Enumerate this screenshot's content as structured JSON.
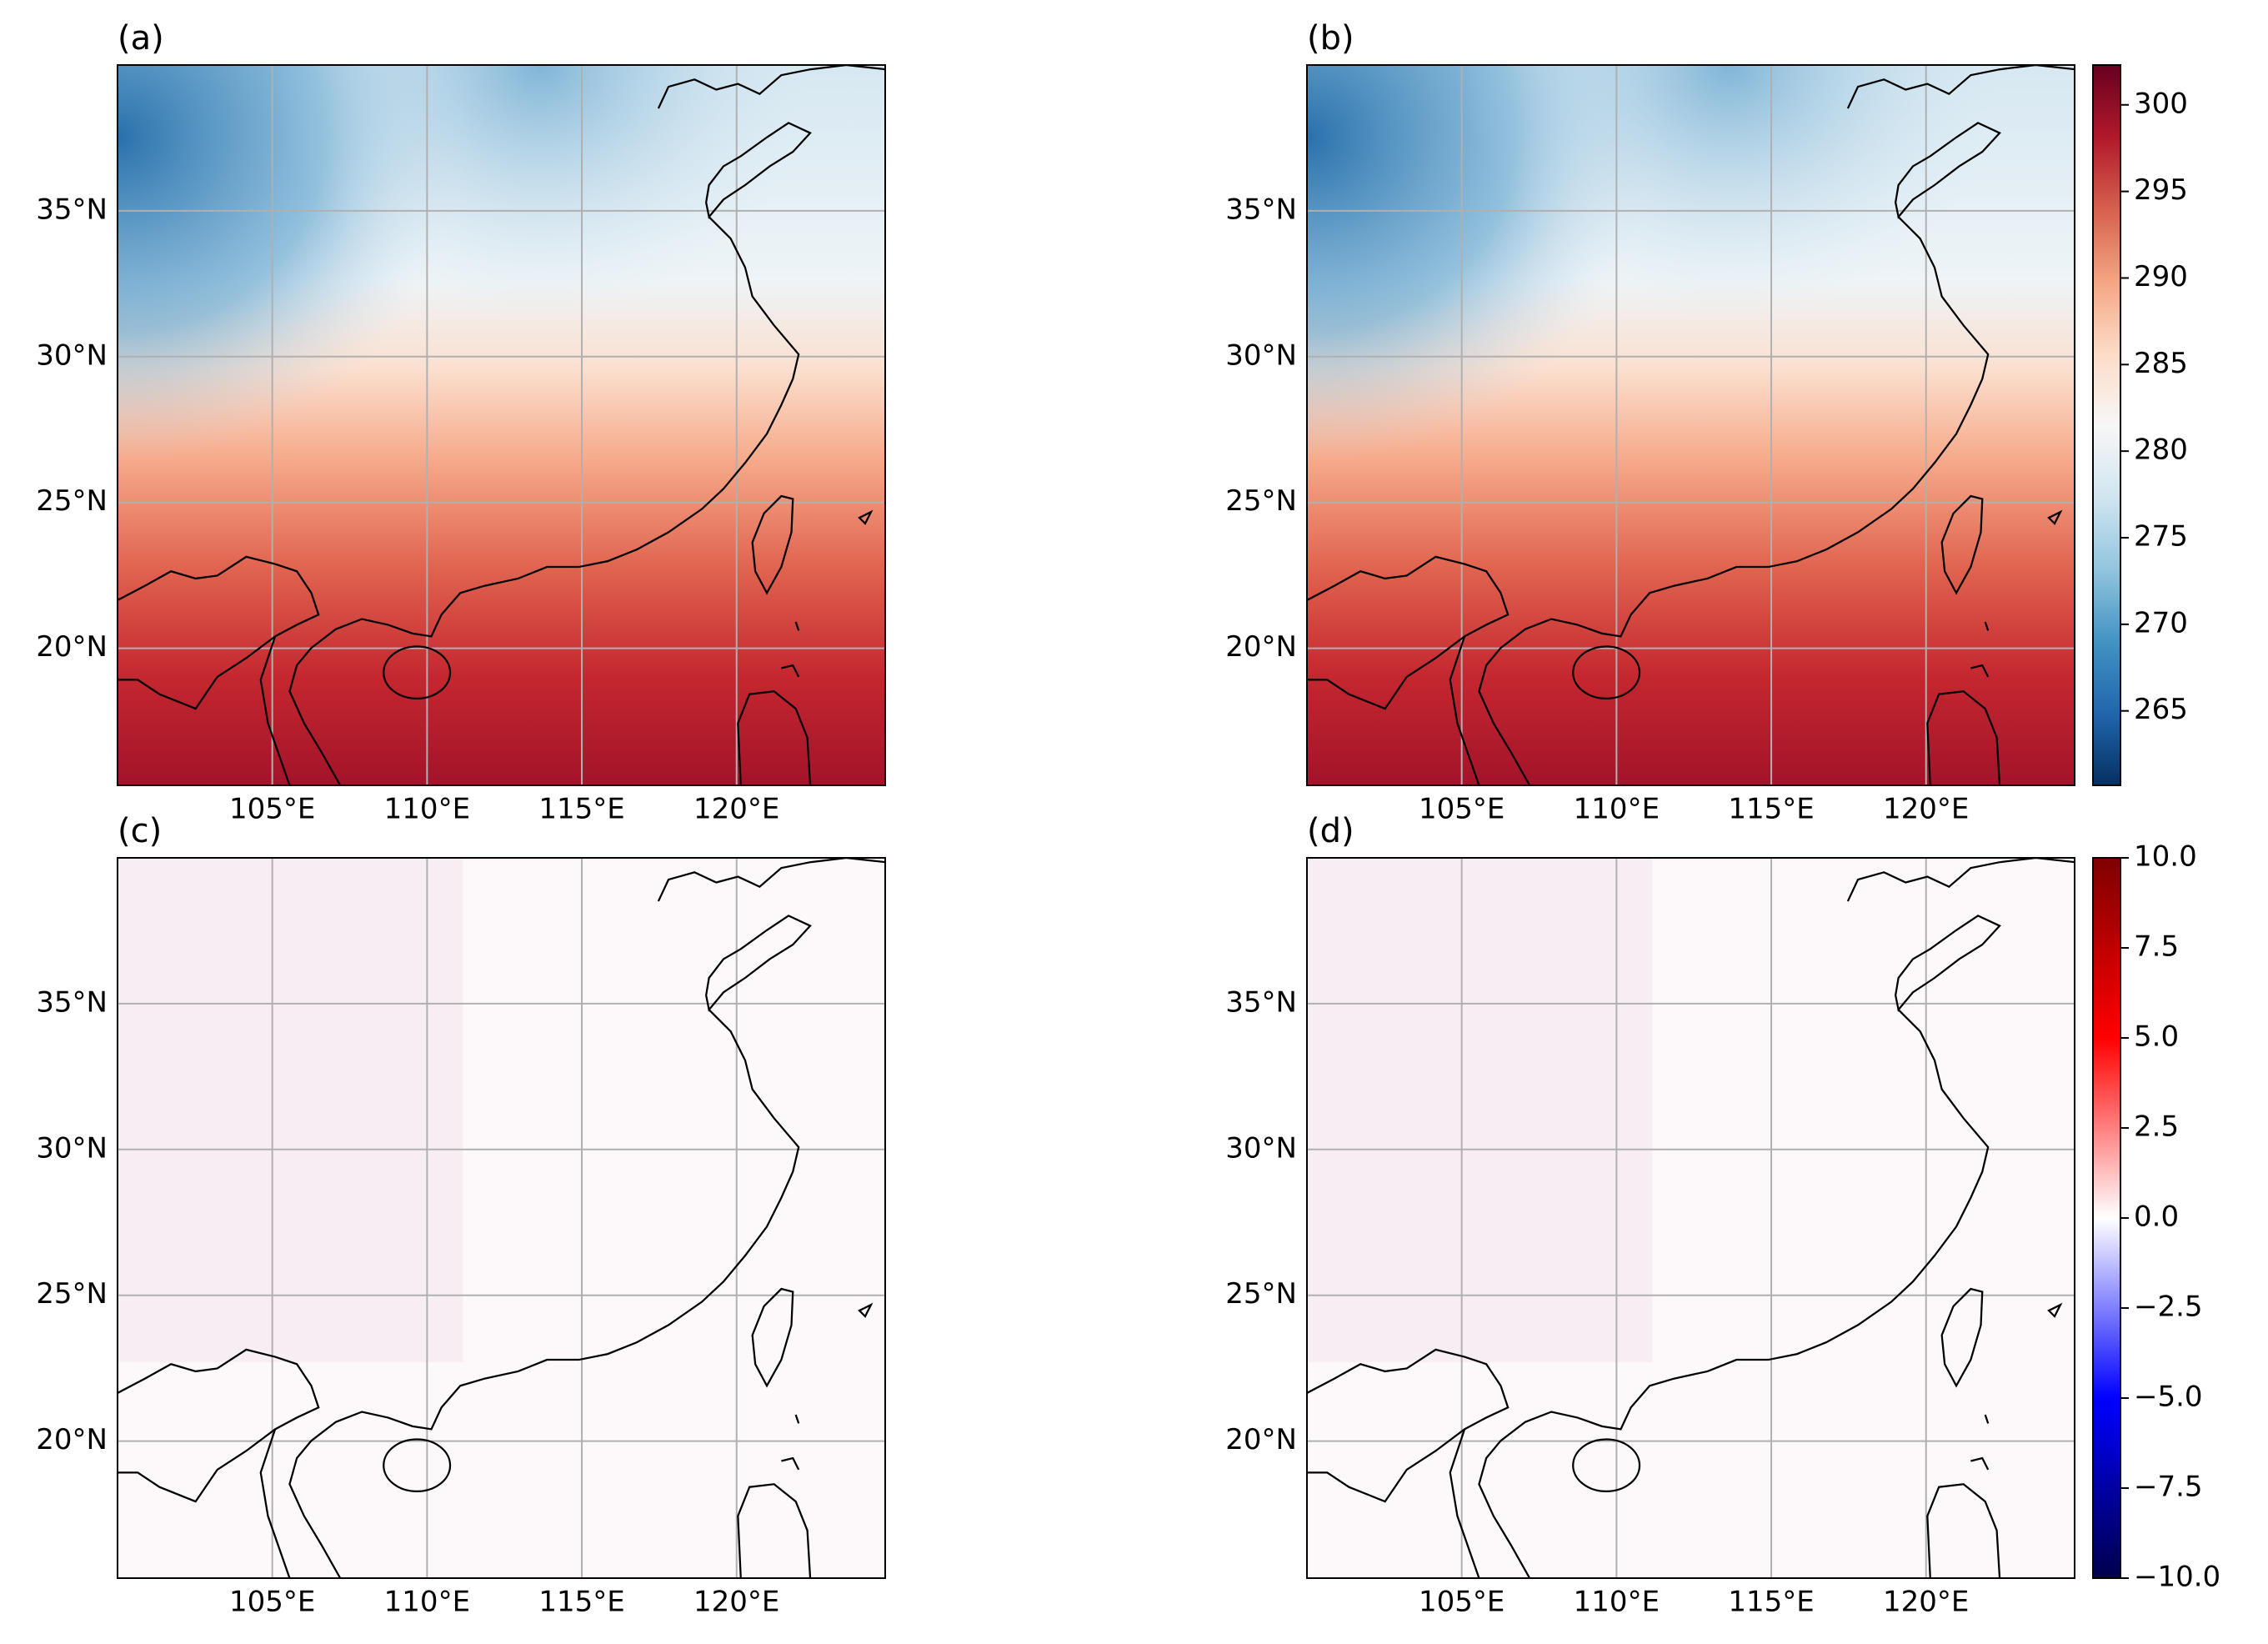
{
  "axes": {
    "xlim": [
      100,
      124.8
    ],
    "ylim": [
      15.3,
      40
    ],
    "xticks": [
      {
        "value": 105,
        "label": "105°E"
      },
      {
        "value": 110,
        "label": "110°E"
      },
      {
        "value": 115,
        "label": "115°E"
      },
      {
        "value": 120,
        "label": "120°E"
      }
    ],
    "yticks": [
      {
        "value": 20,
        "label": "20°N"
      },
      {
        "value": 25,
        "label": "25°N"
      },
      {
        "value": 30,
        "label": "30°N"
      },
      {
        "value": 35,
        "label": "35°N"
      }
    ],
    "grid": true
  },
  "panels": [
    {
      "label": "(a)"
    },
    {
      "label": "(b)",
      "colorbar": {
        "lim": [
          260.7,
          302.3
        ],
        "ticks": [
          265,
          270,
          275,
          280,
          285,
          290,
          295,
          300
        ],
        "colors": [
          "#053061",
          "#2166ac",
          "#4393c3",
          "#92c5de",
          "#d1e5f0",
          "#f7f7f7",
          "#fddbc7",
          "#f4a582",
          "#d6604d",
          "#b2182b",
          "#67001f"
        ]
      }
    },
    {
      "label": "(c)"
    },
    {
      "label": "(d)",
      "colorbar": {
        "lim": [
          -10,
          10
        ],
        "ticks": [
          {
            "value": -10,
            "label": "−10.0"
          },
          {
            "value": -7.5,
            "label": "−7.5"
          },
          {
            "value": -5,
            "label": "−5.0"
          },
          {
            "value": -2.5,
            "label": "−2.5"
          },
          {
            "value": 0,
            "label": "0.0"
          },
          2.5,
          {
            "value": 5,
            "label": "5.0"
          },
          7.5,
          {
            "value": 10,
            "label": "10.0"
          }
        ],
        "colors": [
          "#00004c",
          "#0000ff",
          "#ffffff",
          "#ff0000",
          "#7f0000"
        ]
      }
    }
  ]
}
